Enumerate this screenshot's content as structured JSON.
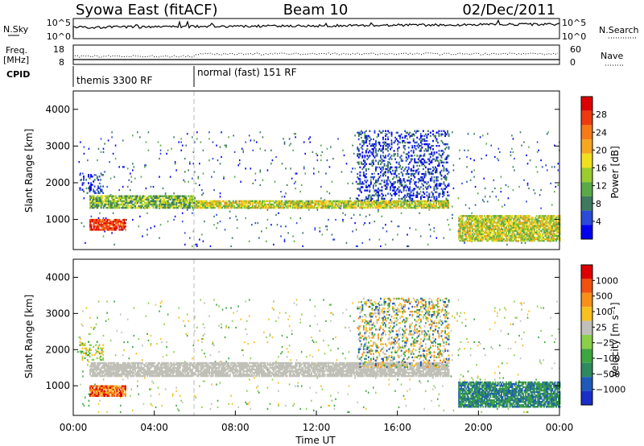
{
  "header": {
    "station": "Syowa East (fitACF)",
    "beam": "Beam 10",
    "date": "02/Dec/2011"
  },
  "top_panels": {
    "nsky_label": "N.Sky",
    "nsky_ticks": [
      "10^5",
      "10^0"
    ],
    "nsearch_label": "N.Search",
    "nsearch_ticks": [
      "10^5",
      "10^0"
    ],
    "freq_label": "Freq.",
    "freq_unit": "[MHz]",
    "freq_ticks": [
      "18",
      "8"
    ],
    "nave_label": "Nave",
    "nave_ticks": [
      "60",
      "0"
    ],
    "cpid_label": "CPID",
    "cpid_segments": [
      {
        "label": "themis 3300 RF",
        "start_hour": 0,
        "end_hour": 6
      },
      {
        "label": "normal (fast) 151 RF",
        "start_hour": 6,
        "end_hour": 24
      }
    ]
  },
  "chart_data": [
    {
      "type": "heatmap",
      "name": "power",
      "ylabel": "Slant Range [km]",
      "ylim": [
        180,
        4500
      ],
      "yticks": [
        "4000",
        "3000",
        "2000",
        "1000"
      ],
      "xlim": [
        0,
        24
      ],
      "colorbar_label": "Power [dB]",
      "colorbar_ticks": [
        "28",
        "24",
        "20",
        "16",
        "12",
        "8",
        "4"
      ],
      "colorbar_colors": [
        "#0000ee",
        "#2a4ad8",
        "#3e7a5e",
        "#5aa848",
        "#9acd32",
        "#f0e020",
        "#f5a623",
        "#f57a1a",
        "#ee3a10",
        "#dd0000"
      ],
      "features": [
        {
          "start_hour": 0.8,
          "end_hour": 6.0,
          "range_km": [
            1300,
            1650
          ],
          "level": "mid"
        },
        {
          "start_hour": 6.0,
          "end_hour": 18.5,
          "range_km": [
            1300,
            1500
          ],
          "level": "high"
        },
        {
          "start_hour": 0.8,
          "end_hour": 2.6,
          "range_km": [
            700,
            1000
          ],
          "level": "peak"
        },
        {
          "start_hour": 19.0,
          "end_hour": 24.0,
          "range_km": [
            400,
            1100
          ],
          "level": "high"
        },
        {
          "start_hour": 0.3,
          "end_hour": 1.5,
          "range_km": [
            1700,
            2200
          ],
          "level": "low"
        },
        {
          "start_hour": 14.0,
          "end_hour": 18.5,
          "range_km": [
            1500,
            3400
          ],
          "level": "low"
        }
      ]
    },
    {
      "type": "heatmap",
      "name": "velocity",
      "ylabel": "Slant Range [km]",
      "ylim": [
        180,
        4500
      ],
      "yticks": [
        "4000",
        "3000",
        "2000",
        "1000"
      ],
      "xlim": [
        0,
        24
      ],
      "xticks": [
        "00:00",
        "04:00",
        "08:00",
        "12:00",
        "16:00",
        "20:00",
        "00:00"
      ],
      "xlabel": "Time UT",
      "colorbar_label": "Velocity [m s⁻¹]",
      "colorbar_ticks": [
        "1000",
        "500",
        "100",
        "25",
        "−25",
        "−100",
        "−500",
        "−1000"
      ],
      "colorbar_colors": [
        "#1a2ec8",
        "#1f5ab8",
        "#2e8a5e",
        "#3da640",
        "#8ad04a",
        "#c0c0b8",
        "#f5c020",
        "#f5901a",
        "#f05010",
        "#dd0000"
      ],
      "features": [
        {
          "start_hour": 0.8,
          "end_hour": 18.5,
          "range_km": [
            1250,
            1650
          ],
          "level": "ground"
        },
        {
          "start_hour": 0.8,
          "end_hour": 2.6,
          "range_km": [
            700,
            1000
          ],
          "level": "negative"
        },
        {
          "start_hour": 19.0,
          "end_hour": 24.0,
          "range_km": [
            400,
            1100
          ],
          "level": "positive"
        },
        {
          "start_hour": 0.3,
          "end_hour": 1.5,
          "range_km": [
            1700,
            2200
          ],
          "level": "low_positive"
        },
        {
          "start_hour": 14.0,
          "end_hour": 18.5,
          "range_km": [
            1500,
            3400
          ],
          "level": "mixed"
        }
      ]
    }
  ]
}
